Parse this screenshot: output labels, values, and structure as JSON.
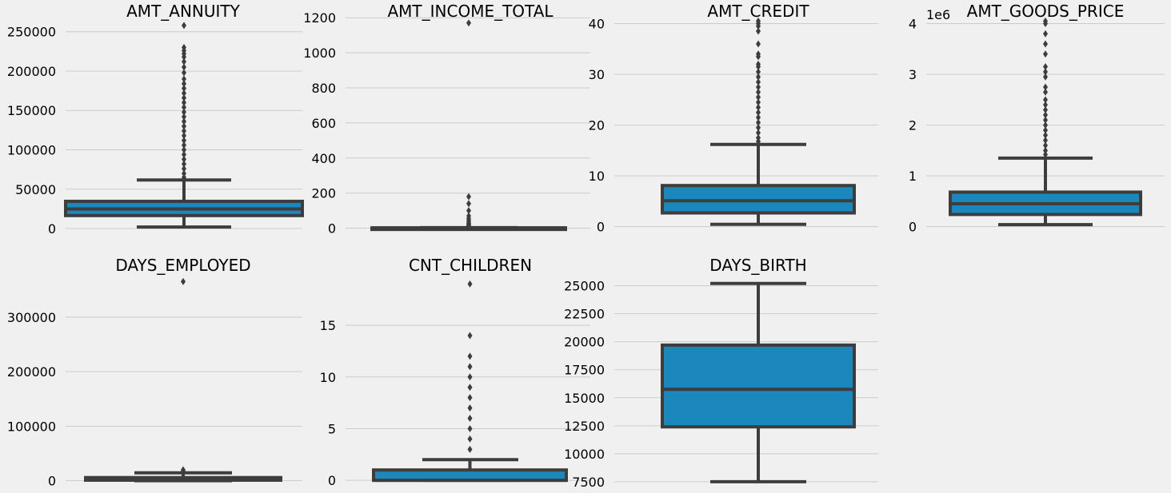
{
  "colors": {
    "background": "#f0f0f0",
    "box_fill": "#1a87bd",
    "line": "#3d3d3d",
    "grid": "#cbcbcb"
  },
  "chart_data": [
    {
      "type": "box",
      "title": "AMT_ANNUITY",
      "ylim": [
        -4000,
        270000
      ],
      "yticks": [
        0,
        50000,
        100000,
        150000,
        200000,
        250000
      ],
      "yticklabels": [
        "0",
        "50000",
        "100000",
        "150000",
        "200000",
        "250000"
      ],
      "offset_label": "",
      "stats": {
        "min": 1980,
        "q1": 16500,
        "median": 24900,
        "q3": 34600,
        "max": 61700
      },
      "outliers": [
        258000,
        230000,
        226000,
        222000,
        218000,
        212000,
        205000,
        198000,
        190000,
        184000,
        178000,
        172000,
        166000,
        160000,
        154000,
        148000,
        142000,
        136000,
        130000,
        124000,
        118000,
        112000,
        106000,
        100000,
        94000,
        88000,
        82000,
        76000,
        70000,
        65000
      ]
    },
    {
      "type": "box",
      "title": "AMT_INCOME_TOTAL",
      "ylim": [
        -20,
        1210
      ],
      "yticks": [
        0,
        200,
        400,
        600,
        800,
        1000,
        1200
      ],
      "yticklabels": [
        "0",
        "200",
        "400",
        "600",
        "800",
        "1000",
        "1200"
      ],
      "offset_label": "",
      "stats": {
        "min": 0.3,
        "q1": 1.1,
        "median": 1.5,
        "q3": 2.0,
        "max": 3.4
      },
      "outliers": [
        1170,
        180,
        140,
        100,
        70,
        55,
        45,
        35,
        28,
        22,
        18,
        14,
        11,
        8,
        6,
        5,
        4
      ]
    },
    {
      "type": "box",
      "title": "AMT_CREDIT",
      "ylim": [
        -1,
        41.5
      ],
      "yticks": [
        0,
        10,
        20,
        30,
        40
      ],
      "yticklabels": [
        "0",
        "10",
        "20",
        "30",
        "40"
      ],
      "offset_label": "",
      "stats": {
        "min": 0.45,
        "q1": 2.7,
        "median": 5.1,
        "q3": 8.1,
        "max": 16.2
      },
      "outliers": [
        40.5,
        40.0,
        39.5,
        38.5,
        36.0,
        34.0,
        33.5,
        32.0,
        31.5,
        30.5,
        29.5,
        28.5,
        27.5,
        26.5,
        25.5,
        24.5,
        23.5,
        22.5,
        21.5,
        20.5,
        19.5,
        18.5,
        17.5,
        16.8
      ]
    },
    {
      "type": "box",
      "title": "AMT_GOODS_PRICE",
      "ylim": [
        -0.1,
        4.15
      ],
      "yticks": [
        0,
        1,
        2,
        3,
        4
      ],
      "yticklabels": [
        "0",
        "1",
        "2",
        "3",
        "4"
      ],
      "offset_label": "1e6",
      "stats": {
        "min": 0.04,
        "q1": 0.24,
        "median": 0.45,
        "q3": 0.68,
        "max": 1.35
      },
      "outliers": [
        4.05,
        4.0,
        3.8,
        3.6,
        3.4,
        3.15,
        3.05,
        2.95,
        2.75,
        2.65,
        2.5,
        2.4,
        2.3,
        2.2,
        2.1,
        2.0,
        1.9,
        1.8,
        1.7,
        1.6,
        1.5,
        1.42
      ]
    },
    {
      "type": "box",
      "title": "DAYS_EMPLOYED",
      "ylim": [
        -5000,
        376000
      ],
      "yticks": [
        0,
        100000,
        200000,
        300000
      ],
      "yticklabels": [
        "0",
        "100000",
        "200000",
        "300000"
      ],
      "offset_label": "",
      "stats": {
        "min": 0,
        "q1": 900,
        "median": 2200,
        "q3": 5700,
        "max": 14500
      },
      "outliers": [
        365243,
        20000,
        17500,
        15500
      ]
    },
    {
      "type": "box",
      "title": "CNT_CHILDREN",
      "ylim": [
        -0.3,
        19.8
      ],
      "yticks": [
        0,
        5,
        10,
        15
      ],
      "yticklabels": [
        "0",
        "5",
        "10",
        "15"
      ],
      "offset_label": "",
      "stats": {
        "min": 0,
        "q1": 0,
        "median": 0,
        "q3": 1,
        "max": 2
      },
      "outliers": [
        19,
        14,
        12,
        11,
        10,
        9,
        8,
        7,
        6,
        5,
        4,
        3
      ]
    },
    {
      "type": "box",
      "title": "DAYS_BIRTH",
      "ylim": [
        7350,
        25900
      ],
      "yticks": [
        7500,
        10000,
        12500,
        15000,
        17500,
        20000,
        22500,
        25000
      ],
      "yticklabels": [
        "7500",
        "10000",
        "12500",
        "15000",
        "17500",
        "20000",
        "22500",
        "25000"
      ],
      "offset_label": "",
      "stats": {
        "min": 7500,
        "q1": 12400,
        "median": 15750,
        "q3": 19700,
        "max": 25200
      },
      "outliers": []
    }
  ]
}
